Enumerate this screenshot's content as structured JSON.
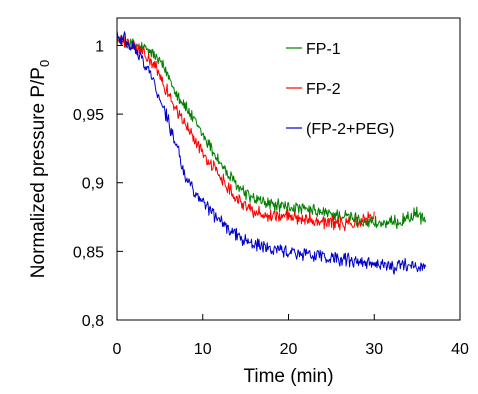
{
  "chart_data": {
    "type": "line",
    "title": "",
    "xlabel": "Time (min)",
    "ylabel_main": "Normalized pressure P/P",
    "ylabel_sub": "0",
    "xlim": [
      0,
      40
    ],
    "ylim": [
      0.8,
      1.02
    ],
    "xticks": [
      0,
      10,
      20,
      30,
      40
    ],
    "xtick_labels": [
      "0",
      "10",
      "20",
      "30",
      "40"
    ],
    "yticks": [
      0.8,
      0.85,
      0.9,
      0.95,
      1.0
    ],
    "ytick_labels": [
      "0,8",
      "0,85",
      "0,9",
      "0,95",
      "1"
    ],
    "grid": false,
    "legend_position": "top-right",
    "series": [
      {
        "name": "FP-1",
        "color": "#008000",
        "x": [
          0,
          1,
          2,
          3,
          4,
          5,
          6,
          7,
          8,
          9,
          10,
          11,
          12,
          13,
          14,
          15,
          16,
          17,
          18,
          19,
          20,
          21,
          22,
          23,
          24,
          25,
          26,
          27,
          28,
          29,
          30,
          31,
          32,
          33,
          34,
          35,
          36
        ],
        "y": [
          1.005,
          1.002,
          1.0,
          0.998,
          0.995,
          0.988,
          0.978,
          0.965,
          0.955,
          0.945,
          0.935,
          0.925,
          0.915,
          0.905,
          0.898,
          0.892,
          0.888,
          0.886,
          0.884,
          0.883,
          0.882,
          0.881,
          0.88,
          0.879,
          0.878,
          0.877,
          0.876,
          0.875,
          0.873,
          0.872,
          0.871,
          0.87,
          0.87,
          0.872,
          0.875,
          0.877,
          0.873
        ]
      },
      {
        "name": "FP-2",
        "color": "#ff0000",
        "x": [
          0,
          1,
          2,
          3,
          4,
          5,
          6,
          7,
          8,
          9,
          10,
          11,
          12,
          13,
          14,
          15,
          16,
          17,
          18,
          19,
          20,
          21,
          22,
          23,
          24,
          25,
          26,
          27,
          28,
          29,
          30
        ],
        "y": [
          1.004,
          1.002,
          0.999,
          0.995,
          0.988,
          0.978,
          0.965,
          0.952,
          0.942,
          0.932,
          0.922,
          0.913,
          0.905,
          0.897,
          0.889,
          0.883,
          0.879,
          0.877,
          0.876,
          0.876,
          0.875,
          0.875,
          0.874,
          0.873,
          0.872,
          0.871,
          0.87,
          0.87,
          0.871,
          0.873,
          0.876
        ]
      },
      {
        "name": "(FP-2+PEG)",
        "color": "#0000cc",
        "x": [
          0,
          1,
          2,
          3,
          4,
          5,
          6,
          7,
          8,
          9,
          10,
          11,
          12,
          13,
          14,
          15,
          16,
          17,
          18,
          19,
          20,
          21,
          22,
          23,
          24,
          25,
          26,
          27,
          28,
          29,
          30,
          31,
          32,
          33,
          34,
          35,
          36
        ],
        "y": [
          1.008,
          1.004,
          0.998,
          0.99,
          0.978,
          0.962,
          0.945,
          0.925,
          0.905,
          0.893,
          0.885,
          0.879,
          0.873,
          0.867,
          0.862,
          0.858,
          0.855,
          0.853,
          0.852,
          0.851,
          0.85,
          0.849,
          0.848,
          0.847,
          0.846,
          0.845,
          0.844,
          0.843,
          0.842,
          0.841,
          0.84,
          0.84,
          0.839,
          0.839,
          0.84,
          0.839,
          0.838
        ]
      }
    ]
  }
}
